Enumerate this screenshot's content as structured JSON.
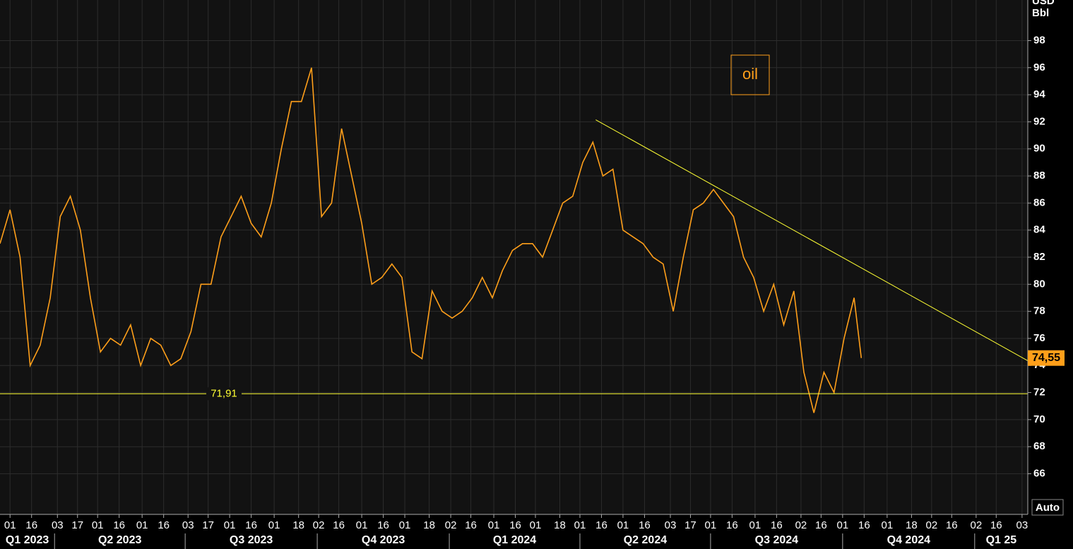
{
  "chart_data": {
    "type": "line",
    "y_unit": [
      "USD",
      "Bbl"
    ],
    "series": [
      {
        "name": "oil",
        "color": "#ff9f1a",
        "x": [
          "2023-02-22",
          "2023-03-01",
          "2023-03-08",
          "2023-03-15",
          "2023-03-22",
          "2023-03-29",
          "2023-04-05",
          "2023-04-12",
          "2023-04-19",
          "2023-04-26",
          "2023-05-03",
          "2023-05-10",
          "2023-05-17",
          "2023-05-24",
          "2023-05-31",
          "2023-06-07",
          "2023-06-14",
          "2023-06-21",
          "2023-06-28",
          "2023-07-05",
          "2023-07-12",
          "2023-07-19",
          "2023-07-26",
          "2023-08-02",
          "2023-08-09",
          "2023-08-16",
          "2023-08-23",
          "2023-08-30",
          "2023-09-06",
          "2023-09-13",
          "2023-09-20",
          "2023-09-27",
          "2023-10-04",
          "2023-10-11",
          "2023-10-18",
          "2023-10-25",
          "2023-11-01",
          "2023-11-08",
          "2023-11-15",
          "2023-11-22",
          "2023-11-29",
          "2023-12-06",
          "2023-12-13",
          "2023-12-20",
          "2023-12-27",
          "2024-01-03",
          "2024-01-10",
          "2024-01-17",
          "2024-01-24",
          "2024-01-31",
          "2024-02-07",
          "2024-02-14",
          "2024-02-21",
          "2024-02-28",
          "2024-03-06",
          "2024-03-13",
          "2024-03-20",
          "2024-03-27",
          "2024-04-03",
          "2024-04-10",
          "2024-04-17",
          "2024-04-24",
          "2024-05-01",
          "2024-05-08",
          "2024-05-15",
          "2024-05-22",
          "2024-05-29",
          "2024-06-05",
          "2024-06-12",
          "2024-06-19",
          "2024-06-26",
          "2024-07-03",
          "2024-07-10",
          "2024-07-17",
          "2024-07-24",
          "2024-07-31",
          "2024-08-07",
          "2024-08-14",
          "2024-08-21",
          "2024-08-28",
          "2024-09-04",
          "2024-09-11",
          "2024-09-18",
          "2024-09-25",
          "2024-10-02",
          "2024-10-09",
          "2024-10-14"
        ],
        "values": [
          83,
          85.5,
          82,
          74,
          75.5,
          79,
          85,
          86.5,
          84,
          79,
          75,
          76,
          75.5,
          77,
          74,
          76,
          75.5,
          74,
          74.5,
          76.5,
          80,
          80,
          83.5,
          85,
          86.5,
          84.5,
          83.5,
          86,
          90,
          93.5,
          93.5,
          96,
          85,
          86,
          91.5,
          88,
          84.5,
          80,
          80.5,
          81.5,
          80.5,
          75,
          74.5,
          79.5,
          78,
          77.5,
          78,
          79,
          80.5,
          79,
          81,
          82.5,
          83,
          83,
          82,
          84,
          86,
          86.5,
          89,
          90.5,
          88,
          88.5,
          84,
          83.5,
          83,
          82,
          81.5,
          78,
          82,
          85.5,
          86,
          87,
          86,
          85,
          82,
          80.5,
          78,
          80,
          77,
          79.5,
          73.5,
          70.5,
          73.5,
          72,
          76,
          79,
          74.55
        ]
      }
    ],
    "xlim": [
      "2023-02-22",
      "2025-02-07"
    ],
    "ylim": [
      63,
      101
    ],
    "yticks": [
      66,
      68,
      70,
      72,
      74,
      76,
      78,
      80,
      82,
      84,
      86,
      88,
      90,
      92,
      94,
      96,
      98
    ],
    "xticks": [
      {
        "value": "2023-03-01",
        "label": "01"
      },
      {
        "value": "2023-03-16",
        "label": "16"
      },
      {
        "value": "2023-04-03",
        "label": "03"
      },
      {
        "value": "2023-04-17",
        "label": "17"
      },
      {
        "value": "2023-05-01",
        "label": "01"
      },
      {
        "value": "2023-05-16",
        "label": "16"
      },
      {
        "value": "2023-06-01",
        "label": "01"
      },
      {
        "value": "2023-06-16",
        "label": "16"
      },
      {
        "value": "2023-07-03",
        "label": "03"
      },
      {
        "value": "2023-07-17",
        "label": "17"
      },
      {
        "value": "2023-08-01",
        "label": "01"
      },
      {
        "value": "2023-08-16",
        "label": "16"
      },
      {
        "value": "2023-09-01",
        "label": "01"
      },
      {
        "value": "2023-09-18",
        "label": "18"
      },
      {
        "value": "2023-10-02",
        "label": "02"
      },
      {
        "value": "2023-10-16",
        "label": "16"
      },
      {
        "value": "2023-11-01",
        "label": "01"
      },
      {
        "value": "2023-11-16",
        "label": "16"
      },
      {
        "value": "2023-12-01",
        "label": "01"
      },
      {
        "value": "2023-12-18",
        "label": "18"
      },
      {
        "value": "2024-01-02",
        "label": "02"
      },
      {
        "value": "2024-01-16",
        "label": "16"
      },
      {
        "value": "2024-02-01",
        "label": "01"
      },
      {
        "value": "2024-02-16",
        "label": "16"
      },
      {
        "value": "2024-03-01",
        "label": "01"
      },
      {
        "value": "2024-03-18",
        "label": "18"
      },
      {
        "value": "2024-04-01",
        "label": "01"
      },
      {
        "value": "2024-04-16",
        "label": "16"
      },
      {
        "value": "2024-05-01",
        "label": "01"
      },
      {
        "value": "2024-05-16",
        "label": "16"
      },
      {
        "value": "2024-06-03",
        "label": "03"
      },
      {
        "value": "2024-06-17",
        "label": "17"
      },
      {
        "value": "2024-07-01",
        "label": "01"
      },
      {
        "value": "2024-07-16",
        "label": "16"
      },
      {
        "value": "2024-08-01",
        "label": "01"
      },
      {
        "value": "2024-08-16",
        "label": "16"
      },
      {
        "value": "2024-09-02",
        "label": "02"
      },
      {
        "value": "2024-09-16",
        "label": "16"
      },
      {
        "value": "2024-10-01",
        "label": "01"
      },
      {
        "value": "2024-10-16",
        "label": "16"
      },
      {
        "value": "2024-11-01",
        "label": "01"
      },
      {
        "value": "2024-11-18",
        "label": "18"
      },
      {
        "value": "2024-12-02",
        "label": "02"
      },
      {
        "value": "2024-12-16",
        "label": "16"
      },
      {
        "value": "2025-01-02",
        "label": "02"
      },
      {
        "value": "2025-01-16",
        "label": "16"
      },
      {
        "value": "2025-02-03",
        "label": "03"
      }
    ],
    "quarters": [
      {
        "value": "2023-01-01",
        "label": "Q1 2023"
      },
      {
        "value": "2023-04-01",
        "label": "Q2 2023"
      },
      {
        "value": "2023-07-01",
        "label": "Q3 2023"
      },
      {
        "value": "2023-10-01",
        "label": "Q4 2023"
      },
      {
        "value": "2024-01-01",
        "label": "Q1 2024"
      },
      {
        "value": "2024-04-01",
        "label": "Q2 2024"
      },
      {
        "value": "2024-07-01",
        "label": "Q3 2024"
      },
      {
        "value": "2024-10-01",
        "label": "Q4 2024"
      },
      {
        "value": "2025-01-01",
        "label": "Q1 25"
      }
    ],
    "hline": {
      "value": 71.91,
      "label": "71,91",
      "color": "#ffff33"
    },
    "trendline": {
      "x": [
        "2024-04-12",
        "2025-02-07"
      ],
      "y": [
        92.15,
        74.35
      ],
      "color": "#ffff33"
    },
    "last_price": {
      "value": 74.55,
      "label": "74,55"
    },
    "grid": true
  },
  "button": "Auto"
}
